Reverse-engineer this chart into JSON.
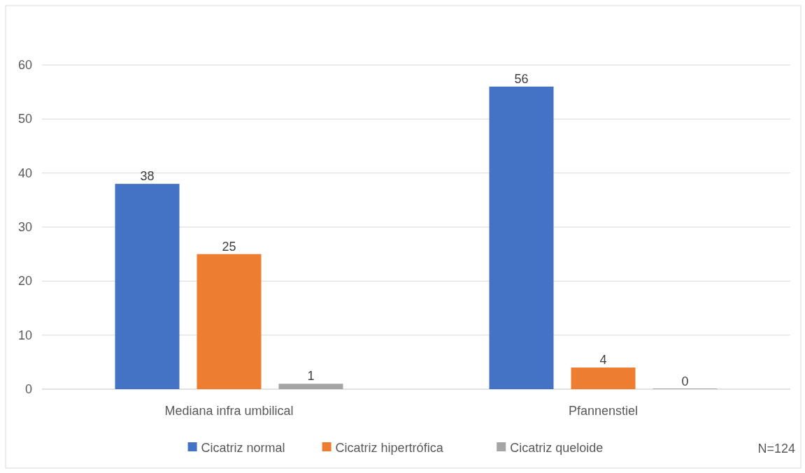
{
  "chart_data": {
    "type": "bar",
    "categories": [
      "Mediana infra umbilical",
      "Pfannenstiel"
    ],
    "series": [
      {
        "name": "Cicatriz normal",
        "color": "#4472c4",
        "values": [
          38,
          56
        ]
      },
      {
        "name": "Cicatriz hipertrófica",
        "color": "#ed7d31",
        "values": [
          25,
          4
        ]
      },
      {
        "name": "Cicatriz queloide",
        "color": "#a5a5a5",
        "values": [
          1,
          0
        ]
      }
    ],
    "ylim": [
      0,
      60
    ],
    "yticks": [
      0,
      10,
      20,
      30,
      40,
      50,
      60
    ],
    "grid": "y",
    "legend": "bottom",
    "data_labels": true,
    "annotations": [
      "N=124"
    ]
  }
}
